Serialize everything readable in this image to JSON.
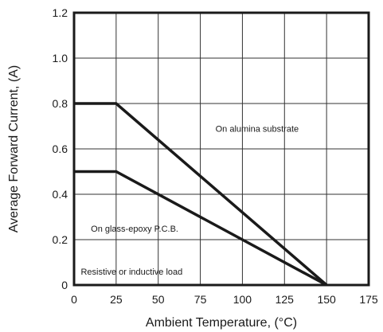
{
  "chart_data": {
    "type": "line",
    "title": "",
    "xlabel": "Ambient Temperature, (°C)",
    "ylabel": "Average Forward Current, (A)",
    "xlim": [
      0,
      175
    ],
    "ylim": [
      0,
      1.2
    ],
    "xticks": [
      0,
      25,
      50,
      75,
      100,
      125,
      150,
      175
    ],
    "yticks": [
      0,
      0.2,
      0.4,
      0.6,
      0.8,
      1.0,
      1.2
    ],
    "xtick_labels": [
      "0",
      "25",
      "50",
      "75",
      "100",
      "125",
      "150",
      "175"
    ],
    "ytick_labels": [
      "0",
      "0.2",
      "0.4",
      "0.6",
      "0.8",
      "1.0",
      "1.2"
    ],
    "grid": true,
    "series": [
      {
        "x": [
          0,
          25,
          150
        ],
        "y": [
          0.8,
          0.8,
          0
        ]
      },
      {
        "x": [
          0,
          25,
          150
        ],
        "y": [
          0.5,
          0.5,
          0
        ]
      }
    ],
    "annotations": [
      {
        "text": "On alumina substrate",
        "x": 84,
        "y": 0.69
      },
      {
        "text": "On glass-epoxy P.C.B.",
        "x": 10,
        "y": 0.25
      },
      {
        "text": "Resistive or inductive load",
        "x": 4,
        "y": 0.06
      }
    ]
  }
}
